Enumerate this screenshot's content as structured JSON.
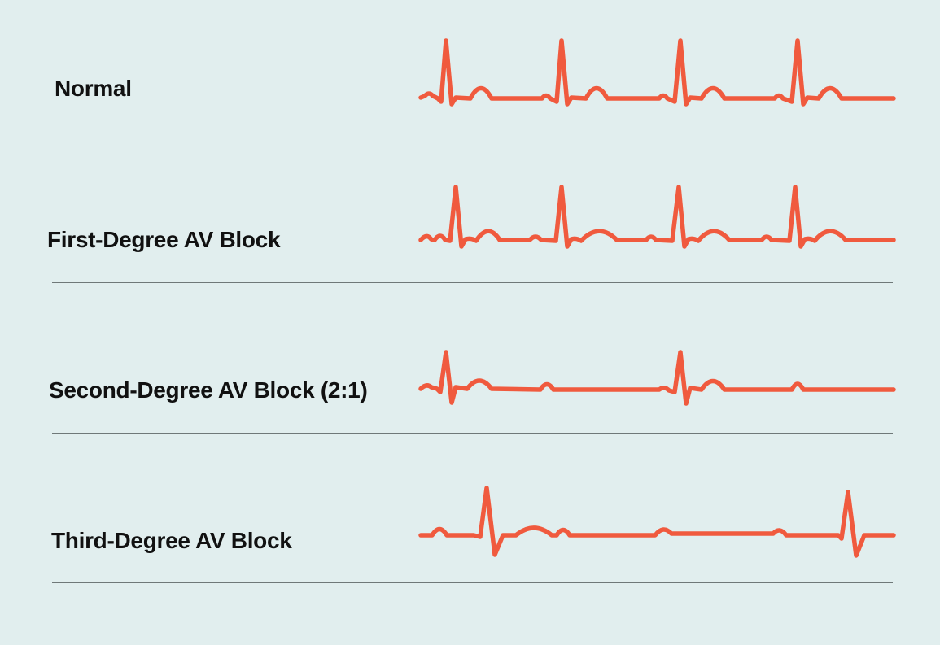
{
  "rhythms": [
    {
      "label": "Normal"
    },
    {
      "label": "First-Degree AV Block"
    },
    {
      "label": "Second-Degree AV Block (2:1)"
    },
    {
      "label": "Third-Degree AV Block"
    }
  ],
  "colors": {
    "background": "#e1eeee",
    "trace": "#f05a3e",
    "text": "#111111",
    "divider": "#6f7878"
  }
}
